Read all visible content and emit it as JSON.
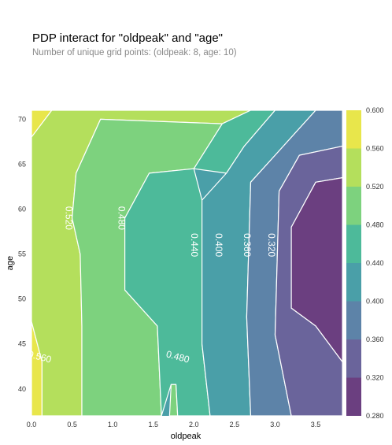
{
  "title": "PDP interact for \"oldpeak\" and \"age\"",
  "subtitle": "Number of unique grid points: (oldpeak: 8, age: 10)",
  "chart_data": {
    "type": "heatmap",
    "subtype": "contour",
    "xlabel": "oldpeak",
    "ylabel": "age",
    "xlim": [
      0,
      3.8
    ],
    "ylim": [
      37,
      71
    ],
    "x_ticks": [
      "0.0",
      "0.5",
      "1.0",
      "1.5",
      "2.0",
      "2.5",
      "3.0",
      "3.5"
    ],
    "y_ticks": [
      "40",
      "45",
      "50",
      "55",
      "60",
      "65",
      "70"
    ],
    "colorbar_ticks": [
      "0.280",
      "0.320",
      "0.360",
      "0.400",
      "0.440",
      "0.480",
      "0.520",
      "0.560",
      "0.600"
    ],
    "colorbar_range": [
      0.28,
      0.6
    ],
    "levels": [
      0.28,
      0.32,
      0.36,
      0.4,
      0.44,
      0.48,
      0.52,
      0.56,
      0.6
    ],
    "level_colors": [
      "#6b3f80",
      "#6a649b",
      "#5d83a8",
      "#4a9fa8",
      "#4dba9a",
      "#7dd27e",
      "#b4df5c",
      "#e8e64b"
    ],
    "contour_labels": [
      {
        "text": "0.520",
        "x": 0.45,
        "y": 59
      },
      {
        "text": "0.480",
        "x": 1.1,
        "y": 59
      },
      {
        "text": "0.440",
        "x": 2.0,
        "y": 56
      },
      {
        "text": "0.400",
        "x": 2.3,
        "y": 56
      },
      {
        "text": "0.360",
        "x": 2.65,
        "y": 56
      },
      {
        "text": "0.320",
        "x": 2.95,
        "y": 56
      },
      {
        "text": "0.560",
        "x": 0.1,
        "y": 43.5
      },
      {
        "text": "0.480",
        "x": 1.8,
        "y": 43.5
      }
    ],
    "regions": [
      {
        "level": 0.58,
        "points": [
          [
            0,
            71
          ],
          [
            0.25,
            71
          ],
          [
            0,
            68
          ]
        ]
      },
      {
        "level": 0.58,
        "points": [
          [
            0,
            47.5
          ],
          [
            0.13,
            43
          ],
          [
            0.13,
            37
          ],
          [
            0,
            37
          ]
        ]
      },
      {
        "level": 0.54,
        "points": [
          [
            0.25,
            71
          ],
          [
            2.7,
            71
          ],
          [
            2.35,
            69.5
          ],
          [
            0.85,
            70
          ],
          [
            0.55,
            64
          ],
          [
            0.5,
            59
          ],
          [
            0.6,
            55
          ],
          [
            0.62,
            47
          ],
          [
            0.62,
            37
          ],
          [
            0.13,
            37
          ],
          [
            0.13,
            43
          ],
          [
            0,
            47.5
          ],
          [
            0,
            68
          ]
        ]
      },
      {
        "level": 0.5,
        "points": [
          [
            0.85,
            70
          ],
          [
            2.35,
            69.5
          ],
          [
            2.0,
            64.5
          ],
          [
            1.45,
            64
          ],
          [
            1.15,
            59
          ],
          [
            1.15,
            51
          ],
          [
            1.55,
            47
          ],
          [
            1.6,
            37
          ],
          [
            0.62,
            37
          ],
          [
            0.62,
            47
          ],
          [
            0.6,
            55
          ],
          [
            0.5,
            59
          ],
          [
            0.55,
            64
          ]
        ]
      },
      {
        "level": 0.5,
        "points": [
          [
            1.7,
            37
          ],
          [
            1.8,
            37
          ],
          [
            1.78,
            40.5
          ],
          [
            1.72,
            40.5
          ]
        ]
      },
      {
        "level": 0.46,
        "points": [
          [
            2.35,
            69.5
          ],
          [
            2.7,
            71
          ],
          [
            3.0,
            71
          ],
          [
            2.62,
            67
          ],
          [
            2.4,
            64
          ],
          [
            2.0,
            64.5
          ]
        ]
      },
      {
        "level": 0.46,
        "points": [
          [
            1.45,
            64
          ],
          [
            2.0,
            64.5
          ],
          [
            2.1,
            61
          ],
          [
            2.1,
            45
          ],
          [
            2.2,
            37
          ],
          [
            1.8,
            37
          ],
          [
            1.78,
            40.5
          ],
          [
            1.72,
            40.5
          ],
          [
            1.6,
            37
          ],
          [
            1.55,
            47
          ],
          [
            1.15,
            51
          ],
          [
            1.15,
            59
          ]
        ]
      },
      {
        "level": 0.42,
        "points": [
          [
            2.62,
            67
          ],
          [
            3.0,
            71
          ],
          [
            3.5,
            71
          ],
          [
            3.0,
            66
          ],
          [
            2.7,
            63
          ],
          [
            2.65,
            48
          ],
          [
            2.7,
            37
          ],
          [
            2.2,
            37
          ],
          [
            2.1,
            45
          ],
          [
            2.1,
            61
          ],
          [
            2.4,
            64
          ]
        ]
      },
      {
        "level": 0.38,
        "points": [
          [
            3.0,
            66
          ],
          [
            3.5,
            71
          ],
          [
            3.83,
            71
          ],
          [
            3.83,
            67
          ],
          [
            3.3,
            66
          ],
          [
            3.05,
            62
          ],
          [
            3.0,
            46
          ],
          [
            3.2,
            37
          ],
          [
            2.7,
            37
          ],
          [
            2.65,
            48
          ],
          [
            2.7,
            63
          ]
        ]
      },
      {
        "level": 0.34,
        "points": [
          [
            3.3,
            66
          ],
          [
            3.83,
            67
          ],
          [
            3.83,
            63.5
          ],
          [
            3.5,
            63
          ],
          [
            3.2,
            58
          ],
          [
            3.2,
            49
          ],
          [
            3.5,
            47
          ],
          [
            3.83,
            43
          ],
          [
            3.83,
            37
          ],
          [
            3.2,
            37
          ],
          [
            3.0,
            46
          ],
          [
            3.05,
            62
          ]
        ]
      },
      {
        "level": 0.3,
        "points": [
          [
            3.5,
            63
          ],
          [
            3.83,
            63.5
          ],
          [
            3.83,
            43
          ],
          [
            3.5,
            47
          ],
          [
            3.2,
            49
          ],
          [
            3.2,
            58
          ]
        ]
      }
    ]
  }
}
